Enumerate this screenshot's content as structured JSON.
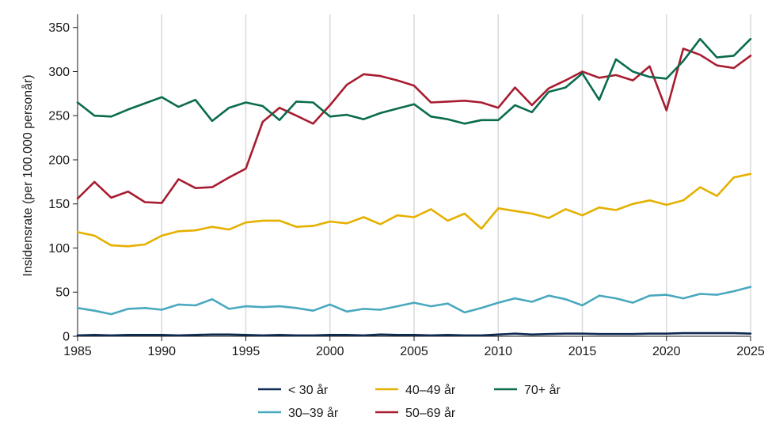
{
  "chart_data": {
    "type": "line",
    "title": "",
    "xlabel": "",
    "ylabel": "Insidensrate (per 100.000 personår)",
    "xlim": [
      1985,
      2025
    ],
    "ylim": [
      0,
      365
    ],
    "xticks": [
      1985,
      1990,
      1995,
      2000,
      2005,
      2010,
      2015,
      2020,
      2025
    ],
    "yticks": [
      0,
      50,
      100,
      150,
      200,
      250,
      300,
      350
    ],
    "grid": "vertical",
    "legend_position": "bottom",
    "x": [
      1985,
      1986,
      1987,
      1988,
      1989,
      1990,
      1991,
      1992,
      1993,
      1994,
      1995,
      1996,
      1997,
      1998,
      1999,
      2000,
      2001,
      2002,
      2003,
      2004,
      2005,
      2006,
      2007,
      2008,
      2009,
      2010,
      2011,
      2012,
      2013,
      2014,
      2015,
      2016,
      2017,
      2018,
      2019,
      2020,
      2021,
      2022,
      2023,
      2024,
      2025
    ],
    "series": [
      {
        "name": "< 30 år",
        "color": "#0d2a52",
        "values": [
          1,
          1.5,
          1,
          1.5,
          1.5,
          1.5,
          1,
          1.5,
          2,
          2,
          1.5,
          1,
          1.5,
          1,
          1,
          1.5,
          1.5,
          1,
          2,
          1.5,
          1.5,
          1,
          1.5,
          1,
          1,
          2,
          3,
          2,
          2.5,
          3,
          3,
          2.5,
          2.5,
          2.5,
          3,
          3,
          3.5,
          3.5,
          3.5,
          3.5,
          3
        ]
      },
      {
        "name": "30–39 år",
        "color": "#4aa8bf",
        "values": [
          32,
          29,
          25,
          31,
          32,
          30,
          36,
          35,
          42,
          31,
          34,
          33,
          34,
          32,
          29,
          36,
          28,
          31,
          30,
          34,
          38,
          34,
          37,
          27,
          32,
          38,
          43,
          39,
          46,
          42,
          35,
          46,
          43,
          38,
          46,
          47,
          43,
          48,
          47,
          51,
          56
        ]
      },
      {
        "name": "40–49 år",
        "color": "#e6b000",
        "values": [
          118,
          114,
          103,
          102,
          104,
          114,
          119,
          120,
          124,
          121,
          129,
          131,
          131,
          124,
          125,
          130,
          128,
          135,
          127,
          137,
          135,
          144,
          131,
          139,
          122,
          145,
          142,
          139,
          134,
          144,
          137,
          146,
          143,
          150,
          154,
          149,
          154,
          169,
          159,
          180,
          184
        ]
      },
      {
        "name": "50–69 år",
        "color": "#a81c30",
        "values": [
          156,
          175,
          157,
          164,
          152,
          151,
          178,
          168,
          169,
          180,
          190,
          243,
          259,
          250,
          241,
          262,
          285,
          297,
          295,
          290,
          284,
          265,
          266,
          267,
          265,
          259,
          282,
          262,
          281,
          290,
          300,
          293,
          296,
          290,
          306,
          256,
          326,
          319,
          307,
          304,
          318
        ]
      },
      {
        "name": "70+ år",
        "color": "#0a6b4e",
        "values": [
          265,
          250,
          249,
          257,
          264,
          271,
          260,
          268,
          244,
          259,
          265,
          261,
          245,
          266,
          265,
          249,
          251,
          246,
          253,
          258,
          263,
          249,
          246,
          241,
          245,
          245,
          262,
          254,
          277,
          282,
          298,
          268,
          314,
          300,
          294,
          292,
          312,
          337,
          316,
          318,
          337
        ]
      }
    ]
  }
}
